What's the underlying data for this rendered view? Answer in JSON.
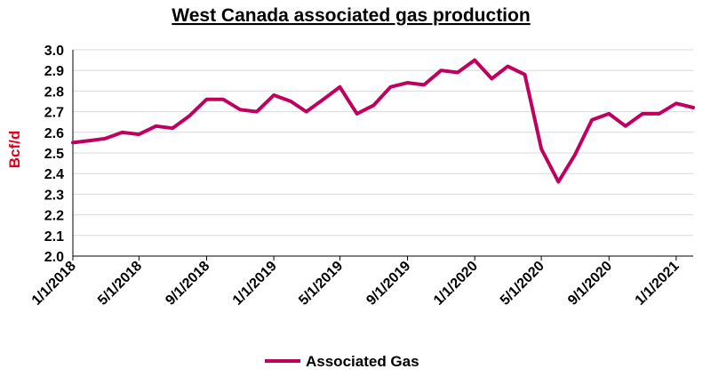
{
  "chart_data": {
    "type": "line",
    "title": "West Canada associated gas production",
    "xlabel": "",
    "ylabel": "Bcf/d",
    "ylim": [
      2.0,
      3.0
    ],
    "yticks": [
      "2.0",
      "2.1",
      "2.2",
      "2.3",
      "2.4",
      "2.5",
      "2.6",
      "2.7",
      "2.8",
      "2.9",
      "3.0"
    ],
    "xtick_labels": [
      "1/1/2018",
      "5/1/2018",
      "9/1/2018",
      "1/1/2019",
      "5/1/2019",
      "9/1/2019",
      "1/1/2020",
      "5/1/2020",
      "9/1/2020",
      "1/1/2021"
    ],
    "grid": true,
    "legend_position": "bottom",
    "color": "#c0005f",
    "x": [
      "2018-01",
      "2018-02",
      "2018-03",
      "2018-04",
      "2018-05",
      "2018-06",
      "2018-07",
      "2018-08",
      "2018-09",
      "2018-10",
      "2018-11",
      "2018-12",
      "2019-01",
      "2019-02",
      "2019-03",
      "2019-04",
      "2019-05",
      "2019-06",
      "2019-07",
      "2019-08",
      "2019-09",
      "2019-10",
      "2019-11",
      "2019-12",
      "2020-01",
      "2020-02",
      "2020-03",
      "2020-04",
      "2020-05",
      "2020-06",
      "2020-07",
      "2020-08",
      "2020-09",
      "2020-10",
      "2020-11",
      "2020-12",
      "2021-01",
      "2021-02"
    ],
    "series": [
      {
        "name": "Associated Gas",
        "values": [
          2.55,
          2.56,
          2.57,
          2.6,
          2.59,
          2.63,
          2.62,
          2.68,
          2.76,
          2.76,
          2.71,
          2.7,
          2.78,
          2.75,
          2.7,
          2.76,
          2.82,
          2.69,
          2.73,
          2.82,
          2.84,
          2.83,
          2.9,
          2.89,
          2.95,
          2.86,
          2.92,
          2.88,
          2.52,
          2.36,
          2.49,
          2.66,
          2.69,
          2.63,
          2.69,
          2.69,
          2.74,
          2.72
        ]
      }
    ]
  }
}
